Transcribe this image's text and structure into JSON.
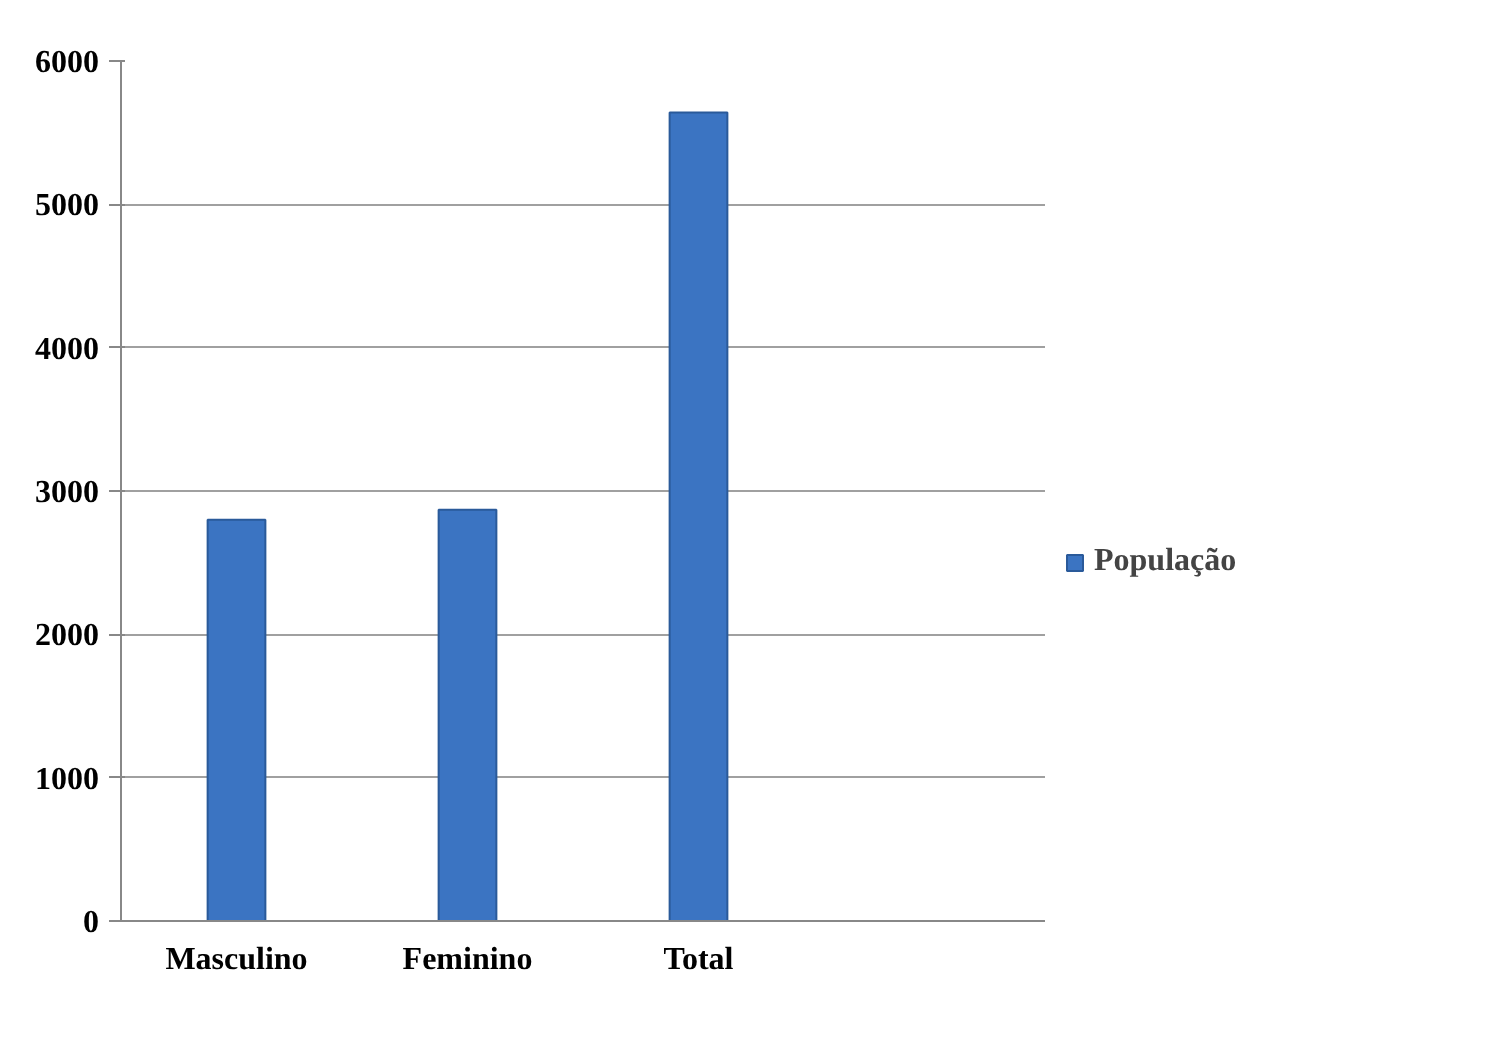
{
  "chart_data": {
    "type": "bar",
    "categories": [
      "Masculino",
      "Feminino",
      "Total",
      null
    ],
    "series": [
      {
        "name": "População",
        "color": "#3b74c2",
        "values": [
          2800,
          2870,
          5640,
          null
        ]
      }
    ],
    "ylim": [
      0,
      6000
    ],
    "yticks": [
      0,
      1000,
      2000,
      3000,
      4000,
      5000,
      6000
    ],
    "grid": "y",
    "legend": "right"
  }
}
